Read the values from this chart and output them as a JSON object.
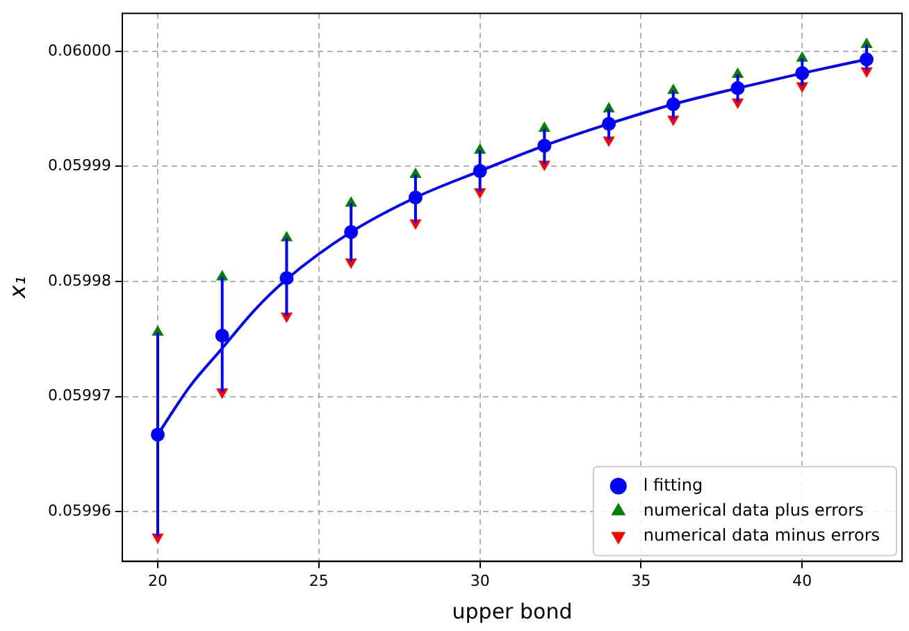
{
  "chart_data": {
    "type": "scatter",
    "xlabel": "upper bond",
    "ylabel": "x₁",
    "xlim": [
      18.9,
      43.1
    ],
    "ylim": [
      0.0599557,
      0.0600033
    ],
    "xticks": [
      20,
      25,
      30,
      35,
      40
    ],
    "yticks": [
      {
        "value": 0.05996,
        "label": "0.05996"
      },
      {
        "value": 0.05997,
        "label": "0.05997"
      },
      {
        "value": 0.05998,
        "label": "0.05998"
      },
      {
        "value": 0.05999,
        "label": "0.05999"
      },
      {
        "value": 0.06,
        "label": "0.06000"
      }
    ],
    "grid": true,
    "legend": "bottom right",
    "series": [
      {
        "type": "line",
        "color": "#0000ff",
        "marker": "none",
        "x": [
          20,
          21,
          22,
          23,
          24,
          26,
          28,
          30,
          32,
          34,
          36,
          38,
          40,
          42
        ],
        "values": [
          0.0599667,
          0.0599709,
          0.0599742,
          0.0599775,
          0.0599802,
          0.0599843,
          0.0599873,
          0.0599896,
          0.0599918,
          0.0599937,
          0.0599954,
          0.0599968,
          0.0599981,
          0.0599993
        ]
      },
      {
        "name": "l fitting",
        "color": "#0000ff",
        "marker": "circle",
        "x": [
          20,
          22,
          24,
          26,
          28,
          30,
          32,
          34,
          36,
          38,
          40,
          42
        ],
        "values": [
          0.0599667,
          0.0599753,
          0.0599803,
          0.0599843,
          0.0599873,
          0.0599896,
          0.0599918,
          0.0599937,
          0.0599954,
          0.0599968,
          0.0599981,
          0.0599993
        ],
        "errors": [
          [
            0.0599578,
            0.0599756
          ],
          [
            0.0599704,
            0.0599804
          ],
          [
            0.059977,
            0.0599838
          ],
          [
            0.0599817,
            0.0599868
          ],
          [
            0.0599851,
            0.0599893
          ],
          [
            0.0599878,
            0.0599914
          ],
          [
            0.0599902,
            0.0599933
          ],
          [
            0.0599923,
            0.059995
          ],
          [
            0.0599941,
            0.0599966
          ],
          [
            0.0599956,
            0.059998
          ],
          [
            0.059997,
            0.0599994
          ],
          [
            0.0599983,
            0.0600006
          ]
        ]
      },
      {
        "name": "numerical data plus errors",
        "color": "#008000",
        "marker": "triangle",
        "x": [
          20,
          22,
          24,
          26,
          28,
          30,
          32,
          34,
          36,
          38,
          40,
          42
        ],
        "values": [
          0.0599756,
          0.0599804,
          0.0599838,
          0.0599868,
          0.0599893,
          0.0599914,
          0.0599933,
          0.059995,
          0.0599966,
          0.059998,
          0.0599994,
          0.0600006
        ]
      },
      {
        "name": "numerical data minus errors",
        "color": "#ff0000",
        "marker": "triangle_down",
        "x": [
          20,
          22,
          24,
          26,
          28,
          30,
          32,
          34,
          36,
          38,
          40,
          42
        ],
        "values": [
          0.0599578,
          0.0599704,
          0.059977,
          0.0599817,
          0.0599851,
          0.0599878,
          0.0599902,
          0.0599923,
          0.0599941,
          0.0599956,
          0.059997,
          0.0599983
        ]
      }
    ]
  }
}
